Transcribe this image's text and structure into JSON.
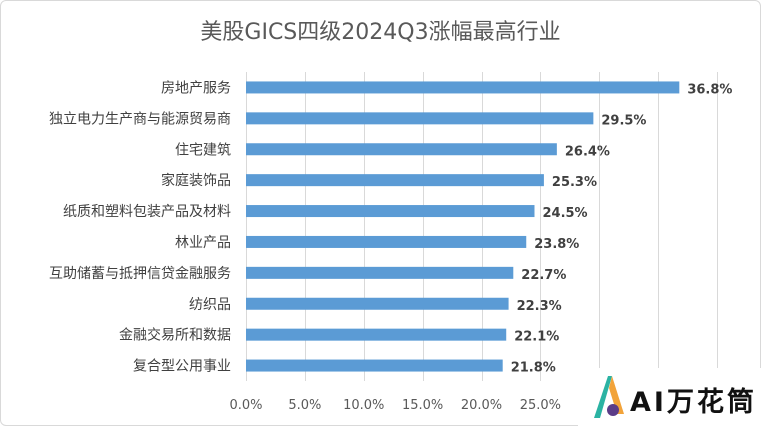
{
  "chart_data": {
    "type": "bar",
    "orientation": "horizontal",
    "title": "美股GICS四级2024Q3涨幅最高行业",
    "categories": [
      "房地产服务",
      "独立电力生产商与能源贸易商",
      "住宅建筑",
      "家庭装饰品",
      "纸质和塑料包装产品及材料",
      "林业产品",
      "互助储蓄与抵押信贷金融服务",
      "纺织品",
      "金融交易所和数据",
      "复合型公用事业"
    ],
    "values": [
      36.8,
      29.5,
      26.4,
      25.3,
      24.5,
      23.8,
      22.7,
      22.3,
      22.1,
      21.8
    ],
    "value_labels": [
      "36.8%",
      "29.5%",
      "26.4%",
      "25.3%",
      "24.5%",
      "23.8%",
      "22.7%",
      "22.3%",
      "22.1%",
      "21.8%"
    ],
    "xlim": [
      0,
      40
    ],
    "xticks": [
      0,
      5,
      10,
      15,
      20,
      25
    ],
    "xtick_labels": [
      "0.0%",
      "5.0%",
      "10.0%",
      "15.0%",
      "20.0%",
      "25.0%"
    ],
    "gridlines": [
      0,
      5,
      10,
      15,
      20,
      25,
      30,
      35,
      40
    ],
    "grid": true,
    "bar_color": "#5b9bd5",
    "grid_color": "#d9d9d9"
  },
  "watermark": {
    "text": "AI万花筒",
    "logo_colors": [
      "#2bb3a3",
      "#f2a33a",
      "#5b3c88"
    ]
  }
}
